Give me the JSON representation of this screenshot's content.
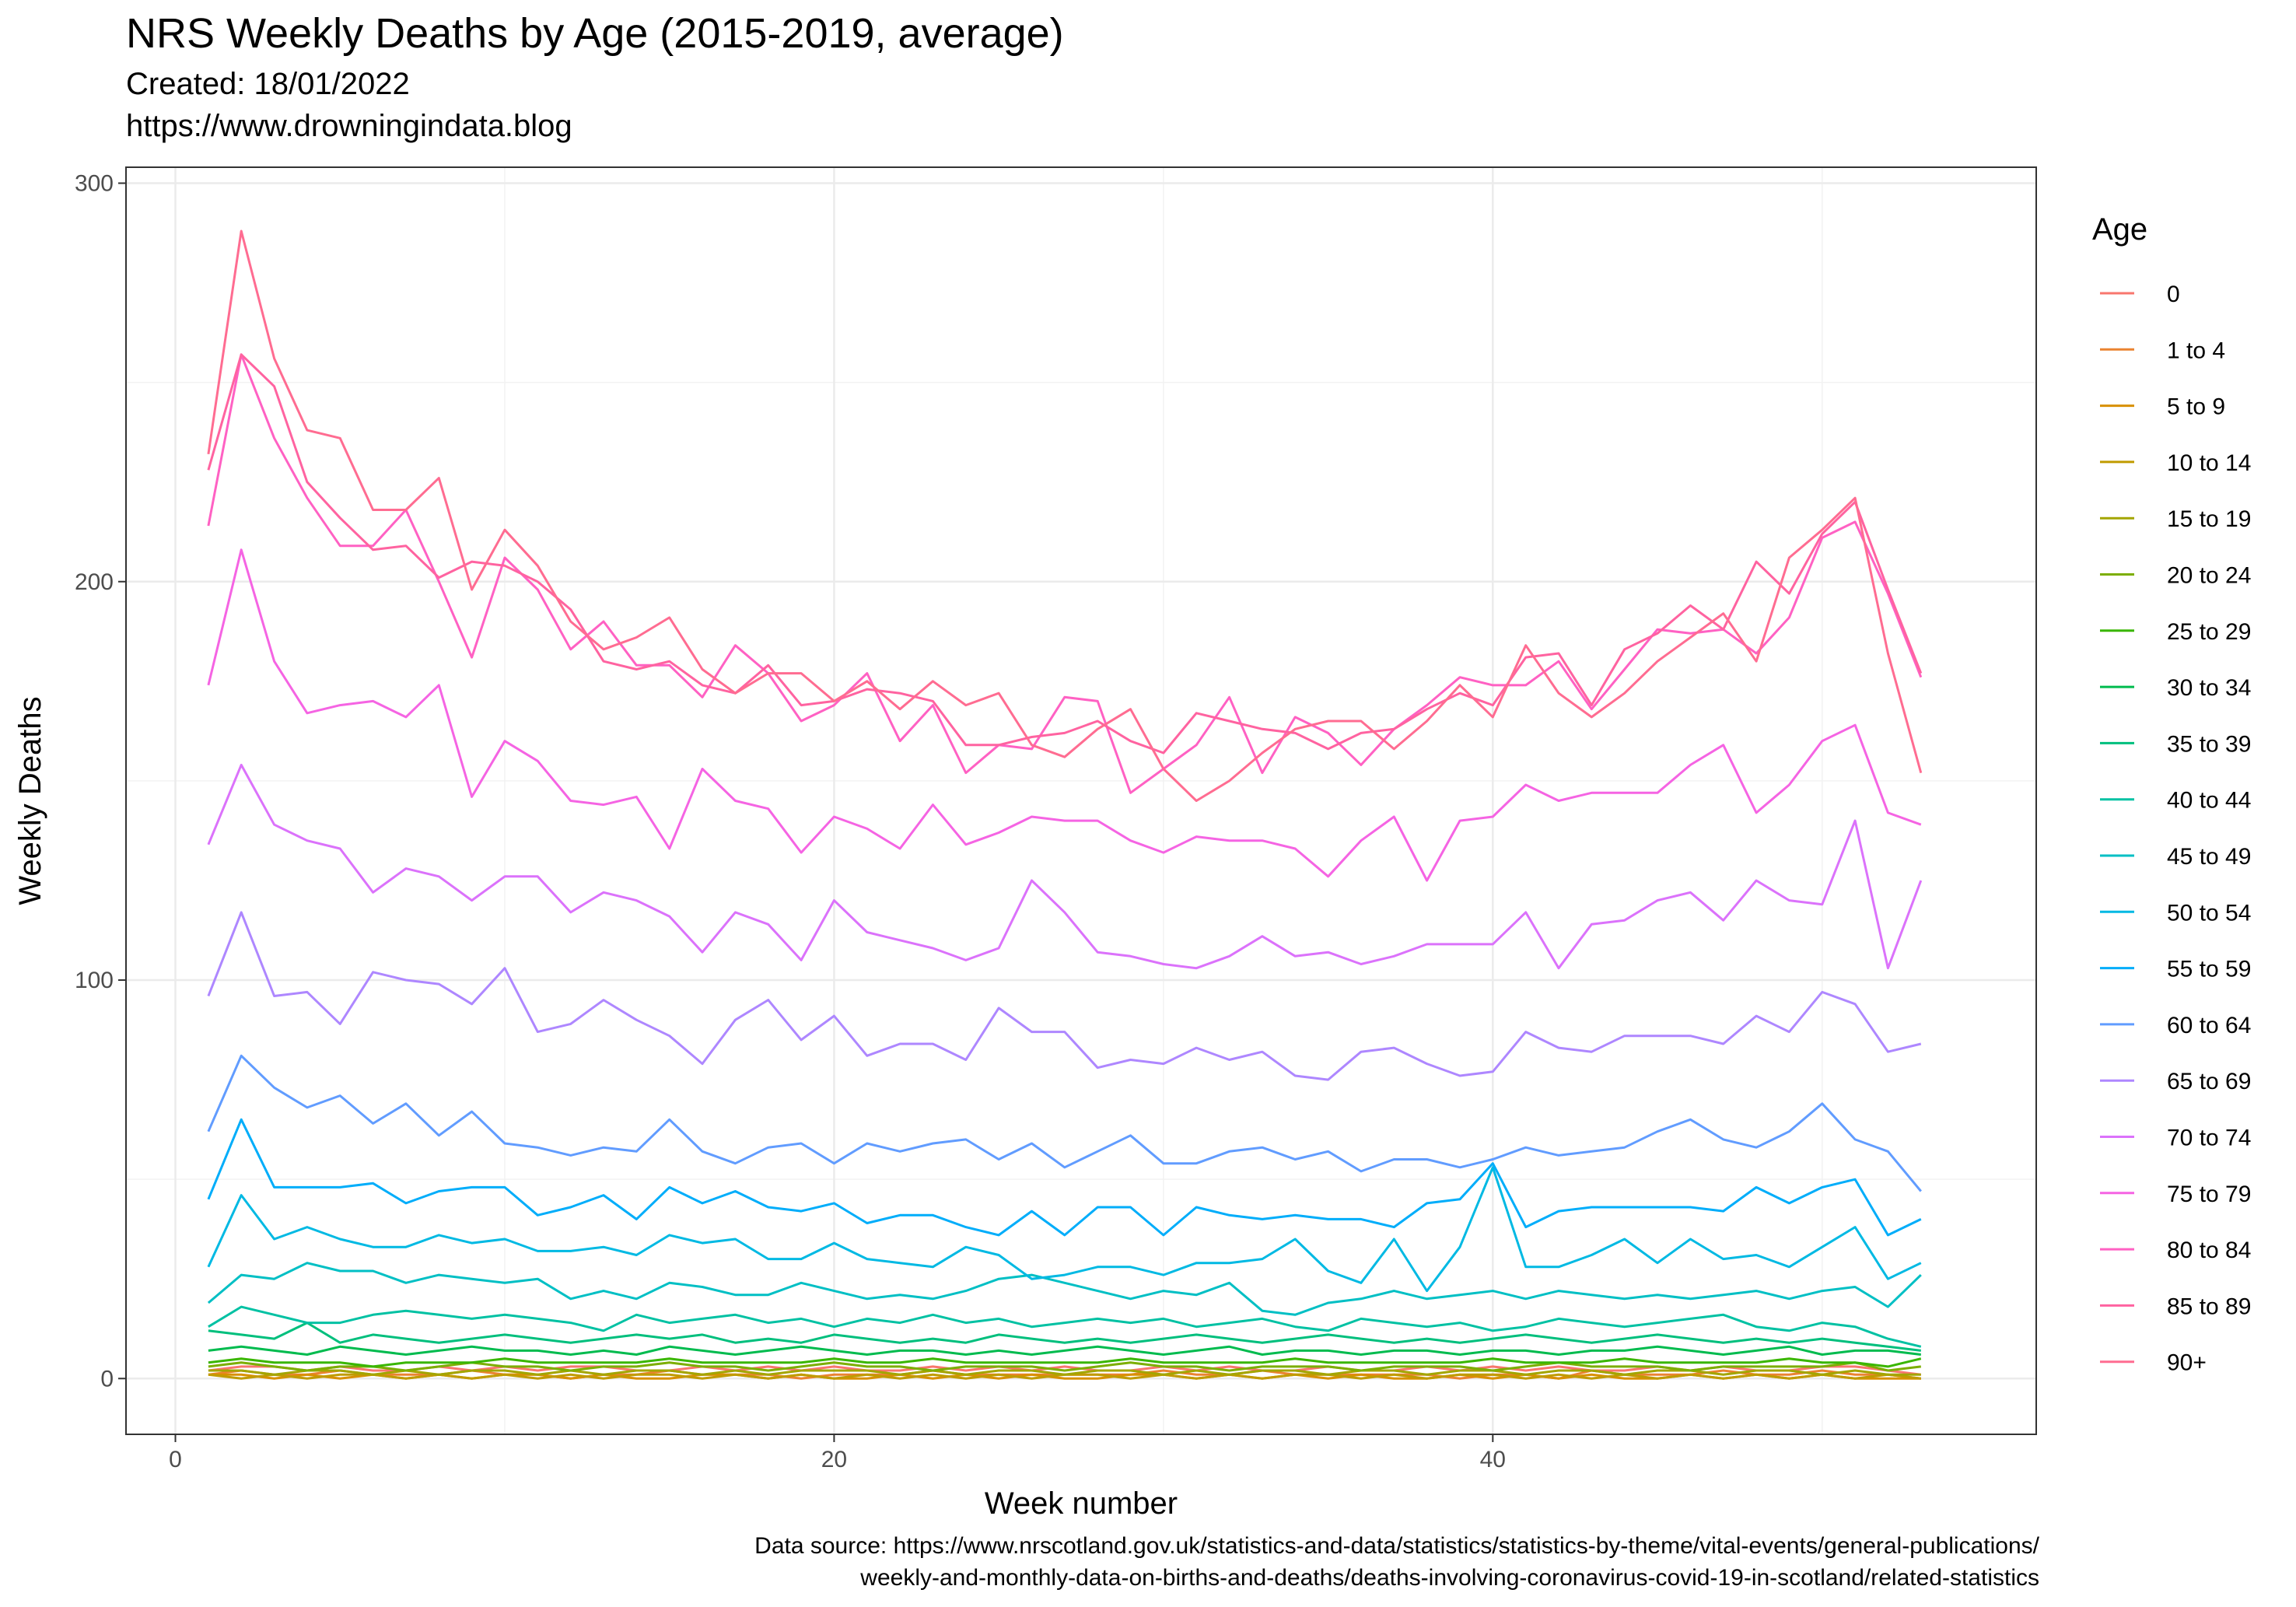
{
  "title": "NRS Weekly Deaths by Age (2015-2019, average)",
  "subtitle_created": "Created:  18/01/2022",
  "subtitle_url": "https://www.drowningindata.blog",
  "caption_line1": "Data source: https://www.nrscotland.gov.uk/statistics-and-data/statistics/statistics-by-theme/vital-events/general-publications/",
  "caption_line2": "weekly-and-monthly-data-on-births-and-deaths/deaths-involving-coronavirus-covid-19-in-scotland/related-statistics",
  "chart_data": {
    "type": "line",
    "title": "NRS Weekly Deaths by Age (2015-2019, average)",
    "xlabel": "Week number",
    "ylabel": "Weekly Deaths",
    "xlim": [
      -1.5,
      56.5
    ],
    "ylim": [
      -14,
      304
    ],
    "x_ticks": [
      0,
      20,
      40
    ],
    "y_ticks": [
      0,
      100,
      200,
      300
    ],
    "grid": true,
    "legend_title": "Age",
    "legend_position": "right",
    "weeks": [
      1,
      2,
      3,
      4,
      5,
      6,
      7,
      8,
      9,
      10,
      11,
      12,
      13,
      14,
      15,
      16,
      17,
      18,
      19,
      20,
      21,
      22,
      23,
      24,
      25,
      26,
      27,
      28,
      29,
      30,
      31,
      32,
      33,
      34,
      35,
      36,
      37,
      38,
      39,
      40,
      41,
      42,
      43,
      44,
      45,
      46,
      47,
      48,
      49,
      50,
      51,
      52,
      53
    ],
    "series": [
      {
        "name": "0",
        "color": "#F8766D",
        "values": [
          2,
          3,
          3,
          2,
          3,
          2,
          2,
          3,
          2,
          3,
          2,
          3,
          3,
          2,
          2,
          3,
          2,
          3,
          2,
          3,
          2,
          2,
          3,
          2,
          3,
          2,
          3,
          2,
          2,
          3,
          2,
          3,
          2,
          2,
          3,
          2,
          2,
          3,
          2,
          3,
          2,
          3,
          2,
          2,
          3,
          2,
          3,
          2,
          2,
          3,
          3,
          2,
          1
        ]
      },
      {
        "name": "1 to 4",
        "color": "#EA8331",
        "values": [
          1,
          2,
          1,
          1,
          2,
          1,
          1,
          1,
          2,
          1,
          1,
          0,
          1,
          1,
          2,
          1,
          1,
          1,
          0,
          1,
          1,
          1,
          2,
          1,
          1,
          1,
          1,
          1,
          1,
          2,
          1,
          1,
          2,
          1,
          1,
          1,
          1,
          1,
          0,
          1,
          1,
          0,
          2,
          1,
          1,
          1,
          2,
          1,
          1,
          2,
          1,
          1,
          0
        ]
      },
      {
        "name": "5 to 9",
        "color": "#D89000",
        "values": [
          1,
          1,
          0,
          1,
          0,
          1,
          0,
          1,
          0,
          1,
          1,
          0,
          1,
          0,
          0,
          1,
          1,
          0,
          1,
          0,
          0,
          1,
          0,
          1,
          0,
          1,
          0,
          0,
          1,
          1,
          0,
          1,
          0,
          1,
          0,
          1,
          0,
          0,
          1,
          0,
          1,
          0,
          1,
          0,
          0,
          1,
          0,
          1,
          0,
          1,
          0,
          0,
          0
        ]
      },
      {
        "name": "10 to 14",
        "color": "#C09B00",
        "values": [
          1,
          0,
          1,
          0,
          1,
          1,
          0,
          1,
          0,
          1,
          0,
          1,
          0,
          1,
          1,
          0,
          1,
          0,
          1,
          0,
          1,
          0,
          1,
          0,
          1,
          0,
          1,
          1,
          0,
          1,
          0,
          1,
          0,
          1,
          1,
          0,
          1,
          0,
          1,
          1,
          0,
          1,
          0,
          1,
          0,
          1,
          0,
          1,
          0,
          1,
          0,
          1,
          0
        ]
      },
      {
        "name": "15 to 19",
        "color": "#A3A500",
        "values": [
          2,
          2,
          1,
          2,
          2,
          1,
          2,
          1,
          2,
          2,
          1,
          2,
          1,
          2,
          2,
          1,
          2,
          1,
          2,
          2,
          2,
          1,
          2,
          1,
          2,
          2,
          1,
          2,
          2,
          1,
          2,
          1,
          2,
          2,
          1,
          2,
          2,
          1,
          2,
          2,
          1,
          2,
          2,
          1,
          2,
          2,
          1,
          2,
          2,
          1,
          2,
          1,
          1
        ]
      },
      {
        "name": "20 to 24",
        "color": "#7CAE00",
        "values": [
          3,
          4,
          3,
          2,
          3,
          3,
          2,
          3,
          4,
          3,
          3,
          2,
          3,
          3,
          4,
          3,
          3,
          2,
          3,
          4,
          3,
          3,
          2,
          3,
          3,
          3,
          2,
          3,
          4,
          3,
          3,
          2,
          3,
          3,
          3,
          2,
          3,
          3,
          3,
          2,
          3,
          4,
          3,
          3,
          3,
          2,
          3,
          3,
          3,
          3,
          4,
          2,
          3
        ]
      },
      {
        "name": "25 to 29",
        "color": "#39B600",
        "values": [
          4,
          5,
          4,
          4,
          4,
          3,
          4,
          4,
          4,
          5,
          4,
          4,
          4,
          4,
          5,
          4,
          4,
          4,
          4,
          5,
          4,
          4,
          5,
          4,
          4,
          4,
          4,
          4,
          5,
          4,
          4,
          4,
          4,
          5,
          4,
          4,
          4,
          4,
          4,
          5,
          4,
          4,
          4,
          5,
          4,
          4,
          4,
          4,
          5,
          4,
          4,
          3,
          5
        ]
      },
      {
        "name": "30 to 34",
        "color": "#00BB4E",
        "values": [
          7,
          8,
          7,
          6,
          8,
          7,
          6,
          7,
          8,
          7,
          7,
          6,
          7,
          6,
          8,
          7,
          6,
          7,
          8,
          7,
          6,
          7,
          7,
          6,
          7,
          6,
          7,
          8,
          7,
          6,
          7,
          8,
          6,
          7,
          7,
          6,
          7,
          7,
          6,
          7,
          7,
          6,
          7,
          7,
          8,
          7,
          6,
          7,
          8,
          6,
          7,
          7,
          6
        ]
      },
      {
        "name": "35 to 39",
        "color": "#00BF7D",
        "values": [
          12,
          11,
          10,
          14,
          9,
          11,
          10,
          9,
          10,
          11,
          10,
          9,
          10,
          11,
          10,
          11,
          9,
          10,
          9,
          11,
          10,
          9,
          10,
          9,
          11,
          10,
          9,
          10,
          9,
          10,
          11,
          10,
          9,
          10,
          11,
          10,
          9,
          10,
          9,
          10,
          11,
          10,
          9,
          10,
          11,
          10,
          9,
          10,
          9,
          10,
          9,
          8,
          7
        ]
      },
      {
        "name": "40 to 44",
        "color": "#00C1A3",
        "values": [
          13,
          18,
          16,
          14,
          14,
          16,
          17,
          16,
          15,
          16,
          15,
          14,
          12,
          16,
          14,
          15,
          16,
          14,
          15,
          13,
          15,
          14,
          16,
          14,
          15,
          13,
          14,
          15,
          14,
          15,
          13,
          14,
          15,
          13,
          12,
          15,
          14,
          13,
          14,
          12,
          13,
          15,
          14,
          13,
          14,
          15,
          16,
          13,
          12,
          14,
          13,
          10,
          8
        ]
      },
      {
        "name": "45 to 49",
        "color": "#00BFC4",
        "values": [
          19,
          26,
          25,
          29,
          27,
          27,
          24,
          26,
          25,
          24,
          25,
          20,
          22,
          20,
          24,
          23,
          21,
          21,
          24,
          22,
          20,
          21,
          20,
          22,
          25,
          26,
          24,
          22,
          20,
          22,
          21,
          24,
          17,
          16,
          19,
          20,
          22,
          20,
          21,
          22,
          20,
          22,
          21,
          20,
          21,
          20,
          21,
          22,
          20,
          22,
          23,
          18,
          26
        ]
      },
      {
        "name": "50 to 54",
        "color": "#00B9E3",
        "values": [
          28,
          46,
          35,
          38,
          35,
          33,
          33,
          36,
          34,
          35,
          32,
          32,
          33,
          31,
          36,
          34,
          35,
          30,
          30,
          34,
          30,
          29,
          28,
          33,
          31,
          25,
          26,
          28,
          28,
          26,
          29,
          29,
          30,
          35,
          27,
          24,
          35,
          22,
          33,
          53,
          28,
          28,
          31,
          35,
          29,
          35,
          30,
          31,
          28,
          33,
          38,
          25,
          29
        ]
      },
      {
        "name": "55 to 59",
        "color": "#00ADFA",
        "values": [
          45,
          65,
          48,
          48,
          48,
          49,
          44,
          47,
          48,
          48,
          41,
          43,
          46,
          40,
          48,
          44,
          47,
          43,
          42,
          44,
          39,
          41,
          41,
          38,
          36,
          42,
          36,
          43,
          43,
          36,
          43,
          41,
          40,
          41,
          40,
          40,
          38,
          44,
          45,
          54,
          38,
          42,
          43,
          43,
          43,
          43,
          42,
          48,
          44,
          48,
          50,
          36,
          40
        ]
      },
      {
        "name": "60 to 64",
        "color": "#619CFF",
        "values": [
          62,
          81,
          73,
          68,
          71,
          64,
          69,
          61,
          67,
          59,
          58,
          56,
          58,
          57,
          65,
          57,
          54,
          58,
          59,
          54,
          59,
          57,
          59,
          60,
          55,
          59,
          53,
          57,
          61,
          54,
          54,
          57,
          58,
          55,
          57,
          52,
          55,
          55,
          53,
          55,
          58,
          56,
          57,
          58,
          62,
          65,
          60,
          58,
          62,
          69,
          60,
          57,
          47
        ]
      },
      {
        "name": "65 to 69",
        "color": "#AE87FF",
        "values": [
          96,
          117,
          96,
          97,
          89,
          102,
          100,
          99,
          94,
          103,
          87,
          89,
          95,
          90,
          86,
          79,
          90,
          95,
          85,
          91,
          81,
          84,
          84,
          80,
          93,
          87,
          87,
          78,
          80,
          79,
          83,
          80,
          82,
          76,
          75,
          82,
          83,
          79,
          76,
          77,
          87,
          83,
          82,
          86,
          86,
          86,
          84,
          91,
          87,
          97,
          94,
          82,
          84
        ]
      },
      {
        "name": "70 to 74",
        "color": "#DB72FB",
        "values": [
          134,
          154,
          139,
          135,
          133,
          122,
          128,
          126,
          120,
          126,
          126,
          117,
          122,
          120,
          116,
          107,
          117,
          114,
          105,
          120,
          112,
          110,
          108,
          105,
          108,
          125,
          117,
          107,
          106,
          104,
          103,
          106,
          111,
          106,
          107,
          104,
          106,
          109,
          109,
          109,
          117,
          103,
          114,
          115,
          120,
          122,
          115,
          125,
          120,
          119,
          140,
          103,
          125
        ]
      },
      {
        "name": "75 to 79",
        "color": "#F564E3",
        "values": [
          174,
          208,
          180,
          167,
          169,
          170,
          166,
          174,
          146,
          160,
          155,
          145,
          144,
          146,
          133,
          153,
          145,
          143,
          132,
          141,
          138,
          133,
          144,
          134,
          137,
          141,
          140,
          140,
          135,
          132,
          136,
          135,
          135,
          133,
          126,
          135,
          141,
          125,
          140,
          141,
          149,
          145,
          147,
          147,
          147,
          154,
          159,
          142,
          149,
          160,
          164,
          142,
          139
        ]
      },
      {
        "name": "80 to 84",
        "color": "#FF61C3",
        "values": [
          214,
          257,
          236,
          221,
          209,
          209,
          218,
          200,
          181,
          206,
          198,
          183,
          190,
          179,
          179,
          171,
          184,
          177,
          165,
          169,
          177,
          160,
          169,
          152,
          159,
          158,
          171,
          170,
          147,
          153,
          159,
          171,
          152,
          166,
          162,
          154,
          163,
          169,
          176,
          174,
          174,
          180,
          168,
          178,
          188,
          187,
          188,
          182,
          191,
          211,
          215,
          197,
          176
        ]
      },
      {
        "name": "85 to 89",
        "color": "#FF63A0",
        "values": [
          228,
          257,
          249,
          225,
          216,
          208,
          209,
          201,
          205,
          204,
          200,
          193,
          180,
          178,
          180,
          174,
          172,
          179,
          169,
          170,
          173,
          172,
          170,
          159,
          159,
          161,
          162,
          165,
          160,
          157,
          167,
          165,
          163,
          162,
          158,
          162,
          163,
          168,
          172,
          169,
          181,
          182,
          169,
          183,
          187,
          194,
          188,
          205,
          197,
          212,
          220,
          198,
          177
        ]
      },
      {
        "name": "90+",
        "color": "#FF6C91",
        "values": [
          232,
          288,
          256,
          238,
          236,
          218,
          218,
          226,
          198,
          213,
          204,
          190,
          183,
          186,
          191,
          178,
          172,
          177,
          177,
          170,
          175,
          168,
          175,
          169,
          172,
          159,
          156,
          163,
          168,
          153,
          145,
          150,
          157,
          163,
          165,
          165,
          158,
          165,
          174,
          166,
          184,
          172,
          166,
          172,
          180,
          186,
          192,
          180,
          206,
          213,
          221,
          182,
          152
        ]
      }
    ]
  }
}
